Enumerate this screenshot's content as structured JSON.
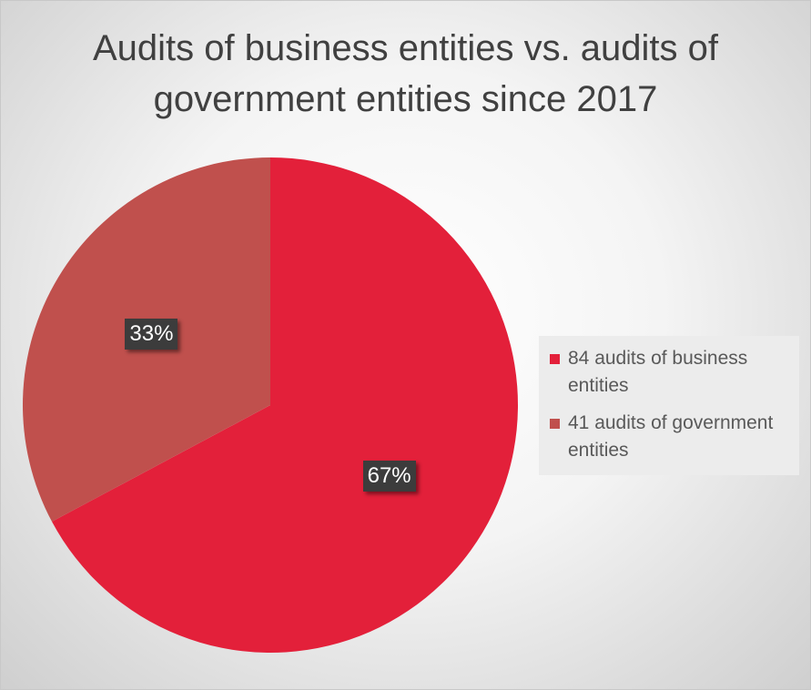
{
  "colors": {
    "business": "#e3203a",
    "government": "#c0504d"
  },
  "chart_data": {
    "type": "pie",
    "title": "Audits of business entities vs. audits of\ngovernment entities since 2017",
    "categories": [
      "84 audits of business entities",
      "41 audits of government entities"
    ],
    "values": [
      84,
      41
    ],
    "data_labels": [
      "67%",
      "33%"
    ],
    "legend_position": "right"
  }
}
